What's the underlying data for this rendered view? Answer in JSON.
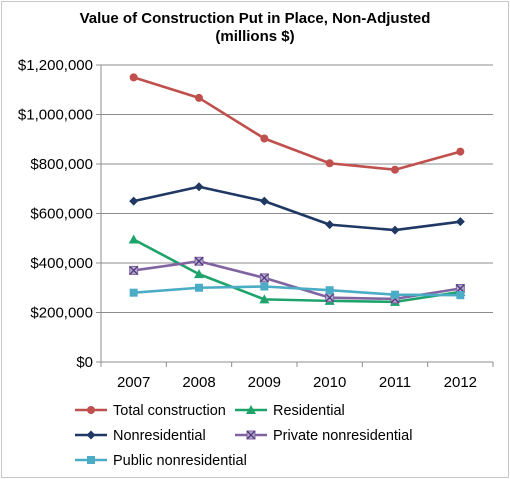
{
  "chart_data": {
    "type": "line",
    "title_line1": "Value of Construction Put in Place, Non-Adjusted",
    "title_line2": "(millions $)",
    "xlabel": "",
    "ylabel": "",
    "categories": [
      "2007",
      "2008",
      "2009",
      "2010",
      "2011",
      "2012"
    ],
    "ylim": [
      0,
      1200000
    ],
    "yticks": [
      0,
      200000,
      400000,
      600000,
      800000,
      1000000,
      1200000
    ],
    "ytick_labels": [
      "$0",
      "$200,000",
      "$400,000",
      "$600,000",
      "$800,000",
      "$1,000,000",
      "$1,200,000"
    ],
    "grid": true,
    "legend_position": "bottom",
    "series": [
      {
        "name": "Total construction",
        "color": "#c0504d",
        "marker": "circle",
        "values": [
          1150000,
          1067000,
          903000,
          803000,
          777000,
          850000
        ]
      },
      {
        "name": "Residential",
        "color": "#1ea36b",
        "marker": "triangle",
        "values": [
          495000,
          355000,
          253000,
          247000,
          243000,
          283000
        ]
      },
      {
        "name": "Nonresidential",
        "color": "#1f3864",
        "marker": "diamond",
        "values": [
          650000,
          708000,
          650000,
          555000,
          533000,
          567000
        ]
      },
      {
        "name": "Private nonresidential",
        "color": "#8064a2",
        "marker": "x",
        "values": [
          370000,
          407000,
          340000,
          260000,
          255000,
          297000
        ]
      },
      {
        "name": "Public nonresidential",
        "color": "#4bacc6",
        "marker": "square",
        "values": [
          280000,
          300000,
          305000,
          290000,
          272000,
          270000
        ]
      }
    ]
  }
}
